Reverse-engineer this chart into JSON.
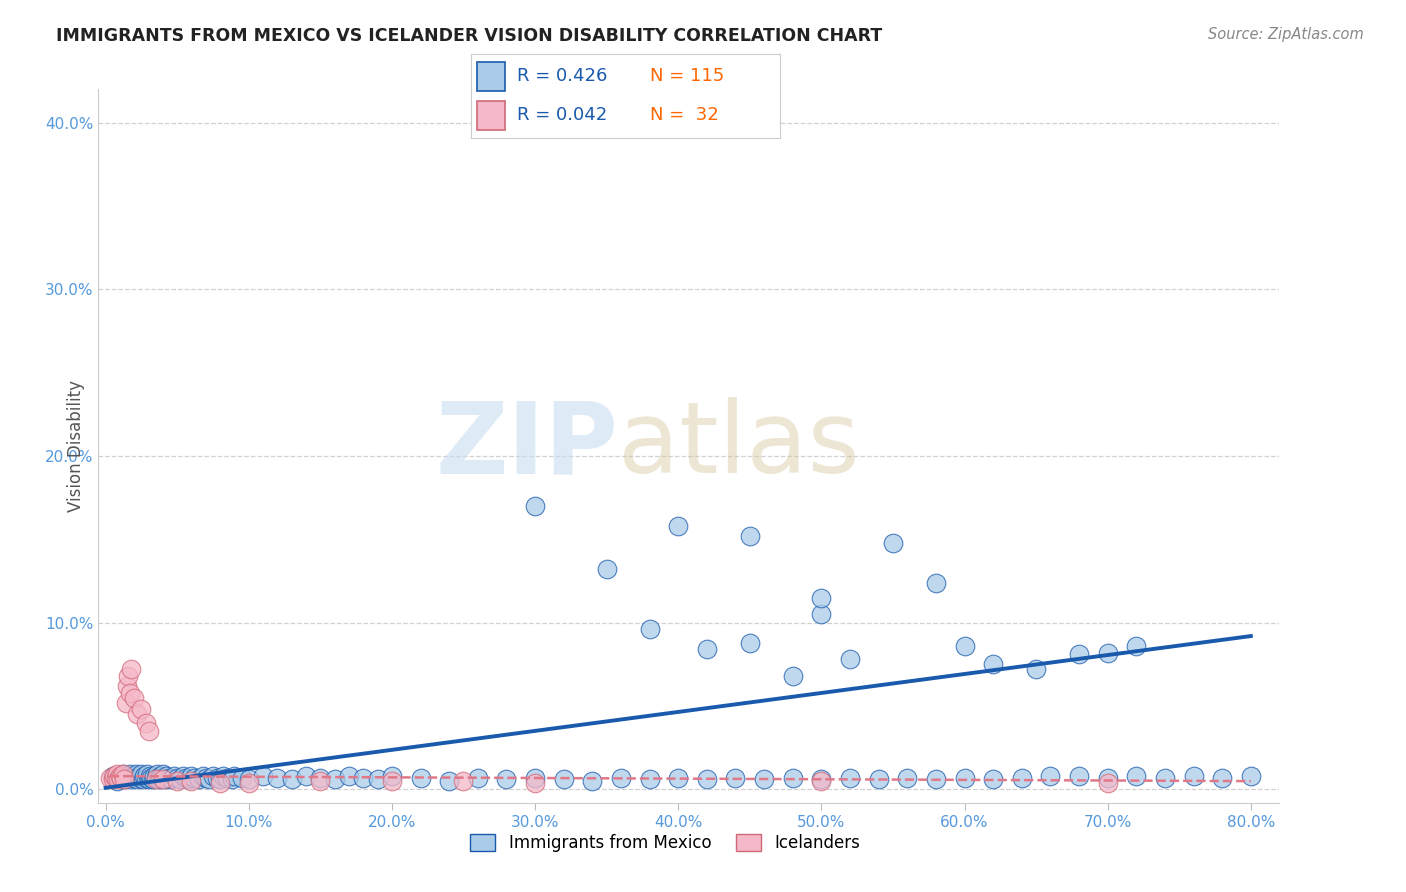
{
  "title": "IMMIGRANTS FROM MEXICO VS ICELANDER VISION DISABILITY CORRELATION CHART",
  "source": "Source: ZipAtlas.com",
  "ylabel": "Vision Disability",
  "series1_label": "Immigrants from Mexico",
  "series2_label": "Icelanders",
  "series1_R": "0.426",
  "series1_N": "115",
  "series2_R": "0.042",
  "series2_N": "32",
  "series1_color": "#aacce8",
  "series2_color": "#f5b8c8",
  "trendline1_color": "#1a5aad",
  "trendline2_color": "#e07888",
  "xlim": [
    -0.005,
    0.82
  ],
  "ylim": [
    -0.008,
    0.42
  ],
  "xticks": [
    0.0,
    0.1,
    0.2,
    0.3,
    0.4,
    0.5,
    0.6,
    0.7,
    0.8
  ],
  "yticks": [
    0.0,
    0.1,
    0.2,
    0.3,
    0.4
  ],
  "watermark_zip": "ZIP",
  "watermark_atlas": "atlas",
  "series1_x": [
    0.005,
    0.008,
    0.01,
    0.012,
    0.013,
    0.015,
    0.016,
    0.017,
    0.018,
    0.019,
    0.02,
    0.021,
    0.022,
    0.023,
    0.024,
    0.025,
    0.026,
    0.027,
    0.028,
    0.029,
    0.03,
    0.031,
    0.032,
    0.033,
    0.034,
    0.035,
    0.036,
    0.037,
    0.038,
    0.039,
    0.04,
    0.041,
    0.042,
    0.044,
    0.046,
    0.048,
    0.05,
    0.052,
    0.054,
    0.056,
    0.058,
    0.06,
    0.062,
    0.065,
    0.068,
    0.07,
    0.072,
    0.075,
    0.078,
    0.08,
    0.082,
    0.085,
    0.088,
    0.09,
    0.095,
    0.1,
    0.11,
    0.12,
    0.13,
    0.14,
    0.15,
    0.16,
    0.17,
    0.18,
    0.19,
    0.2,
    0.22,
    0.24,
    0.26,
    0.28,
    0.3,
    0.32,
    0.34,
    0.36,
    0.38,
    0.4,
    0.42,
    0.44,
    0.46,
    0.48,
    0.5,
    0.52,
    0.54,
    0.56,
    0.58,
    0.6,
    0.62,
    0.64,
    0.66,
    0.68,
    0.7,
    0.72,
    0.74,
    0.76,
    0.78,
    0.8,
    0.4,
    0.45,
    0.5,
    0.55,
    0.6,
    0.65,
    0.7,
    0.5,
    0.3,
    0.35,
    0.42,
    0.48,
    0.38,
    0.52,
    0.58,
    0.45,
    0.62,
    0.68,
    0.72
  ],
  "series1_y": [
    0.008,
    0.005,
    0.007,
    0.009,
    0.006,
    0.008,
    0.007,
    0.009,
    0.006,
    0.008,
    0.007,
    0.009,
    0.006,
    0.008,
    0.007,
    0.009,
    0.006,
    0.008,
    0.007,
    0.009,
    0.006,
    0.008,
    0.007,
    0.006,
    0.008,
    0.007,
    0.009,
    0.006,
    0.008,
    0.007,
    0.009,
    0.006,
    0.008,
    0.007,
    0.006,
    0.008,
    0.007,
    0.006,
    0.008,
    0.007,
    0.006,
    0.008,
    0.007,
    0.006,
    0.008,
    0.007,
    0.006,
    0.008,
    0.007,
    0.006,
    0.008,
    0.007,
    0.006,
    0.008,
    0.007,
    0.006,
    0.008,
    0.007,
    0.006,
    0.008,
    0.007,
    0.006,
    0.008,
    0.007,
    0.006,
    0.008,
    0.007,
    0.005,
    0.007,
    0.006,
    0.007,
    0.006,
    0.005,
    0.007,
    0.006,
    0.007,
    0.006,
    0.007,
    0.006,
    0.007,
    0.006,
    0.007,
    0.006,
    0.007,
    0.006,
    0.007,
    0.006,
    0.007,
    0.008,
    0.008,
    0.007,
    0.008,
    0.007,
    0.008,
    0.007,
    0.008,
    0.158,
    0.152,
    0.105,
    0.148,
    0.086,
    0.072,
    0.082,
    0.115,
    0.17,
    0.132,
    0.084,
    0.068,
    0.096,
    0.078,
    0.124,
    0.088,
    0.075,
    0.081,
    0.086
  ],
  "series2_x": [
    0.003,
    0.005,
    0.006,
    0.007,
    0.008,
    0.009,
    0.01,
    0.011,
    0.012,
    0.013,
    0.014,
    0.015,
    0.016,
    0.017,
    0.018,
    0.02,
    0.022,
    0.025,
    0.028,
    0.03,
    0.035,
    0.04,
    0.05,
    0.06,
    0.08,
    0.1,
    0.15,
    0.2,
    0.25,
    0.3,
    0.5,
    0.7
  ],
  "series2_y": [
    0.007,
    0.006,
    0.008,
    0.007,
    0.009,
    0.006,
    0.008,
    0.007,
    0.009,
    0.006,
    0.052,
    0.062,
    0.068,
    0.058,
    0.072,
    0.055,
    0.045,
    0.048,
    0.04,
    0.035,
    0.006,
    0.006,
    0.005,
    0.005,
    0.004,
    0.004,
    0.005,
    0.005,
    0.005,
    0.004,
    0.005,
    0.004
  ],
  "trendline1_x0": 0.0,
  "trendline1_y0": 0.001,
  "trendline1_x1": 0.8,
  "trendline1_y1": 0.092,
  "trendline2_x0": 0.003,
  "trendline2_y0": 0.008,
  "trendline2_x1": 0.8,
  "trendline2_y1": 0.005
}
